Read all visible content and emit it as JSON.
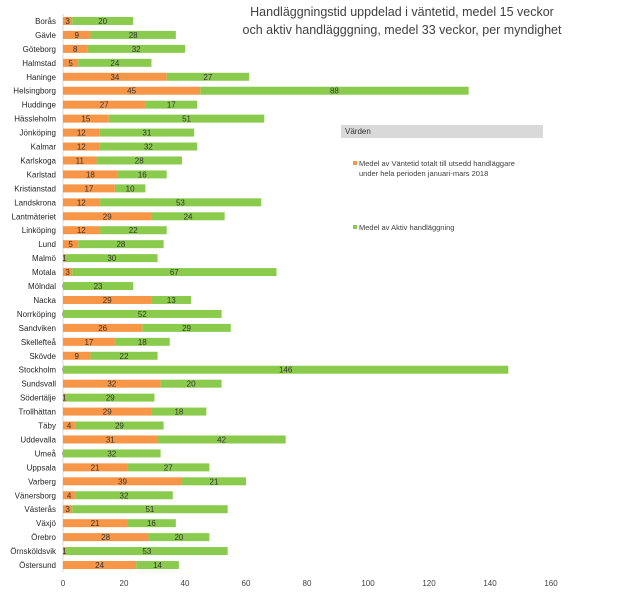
{
  "chart_data": {
    "type": "bar",
    "orientation": "horizontal",
    "stacked": true,
    "title_lines": [
      "Handläggningstid uppdelad i väntetid, medel 15 veckor",
      "och aktiv handlägggning, medel 33 veckor, per myndighet"
    ],
    "categories": [
      "Borås",
      "Gävle",
      "Göteborg",
      "Halmstad",
      "Haninge",
      "Helsingborg",
      "Huddinge",
      "Hässleholm",
      "Jönköping",
      "Kalmar",
      "Karlskoga",
      "Karlstad",
      "Kristianstad",
      "Landskrona",
      "Lantmäteriet",
      "Linköping",
      "Lund",
      "Malmö",
      "Motala",
      "Mölndal",
      "Nacka",
      "Norrköping",
      "Sandviken",
      "Skellefteå",
      "Skövde",
      "Stockholm",
      "Sundsvall",
      "Södertälje",
      "Trollhättan",
      "Täby",
      "Uddevalla",
      "Umeå",
      "Uppsala",
      "Varberg",
      "Vänersborg",
      "Västerås",
      "Växjö",
      "Örebro",
      "Örnsköldsvik",
      "Östersund"
    ],
    "series": [
      {
        "name": "Medel av Väntetid totalt till utsedd handläggare under hela perioden januari-mars 2018",
        "color": "#F79646",
        "values": [
          3,
          9,
          8,
          5,
          34,
          45,
          27,
          15,
          12,
          12,
          11,
          18,
          17,
          12,
          29,
          12,
          5,
          1,
          3,
          0,
          29,
          0,
          26,
          17,
          9,
          0,
          32,
          1,
          29,
          4,
          31,
          0,
          21,
          39,
          4,
          3,
          21,
          28,
          1,
          24
        ]
      },
      {
        "name": "Medel av Aktiv handläggning",
        "color": "#8ACB4E",
        "values": [
          20,
          28,
          32,
          24,
          27,
          88,
          17,
          51,
          31,
          32,
          28,
          16,
          10,
          53,
          24,
          22,
          28,
          30,
          67,
          23,
          13,
          52,
          29,
          18,
          22,
          146,
          20,
          29,
          18,
          29,
          42,
          32,
          27,
          21,
          32,
          51,
          16,
          20,
          53,
          14
        ]
      }
    ],
    "x_ticks": [
      "0",
      "20",
      "40",
      "60",
      "80",
      "100",
      "120",
      "140",
      "160"
    ],
    "xlim": [
      0,
      160
    ],
    "grid": false,
    "legend": {
      "header": "Värden",
      "placement": "right"
    }
  }
}
